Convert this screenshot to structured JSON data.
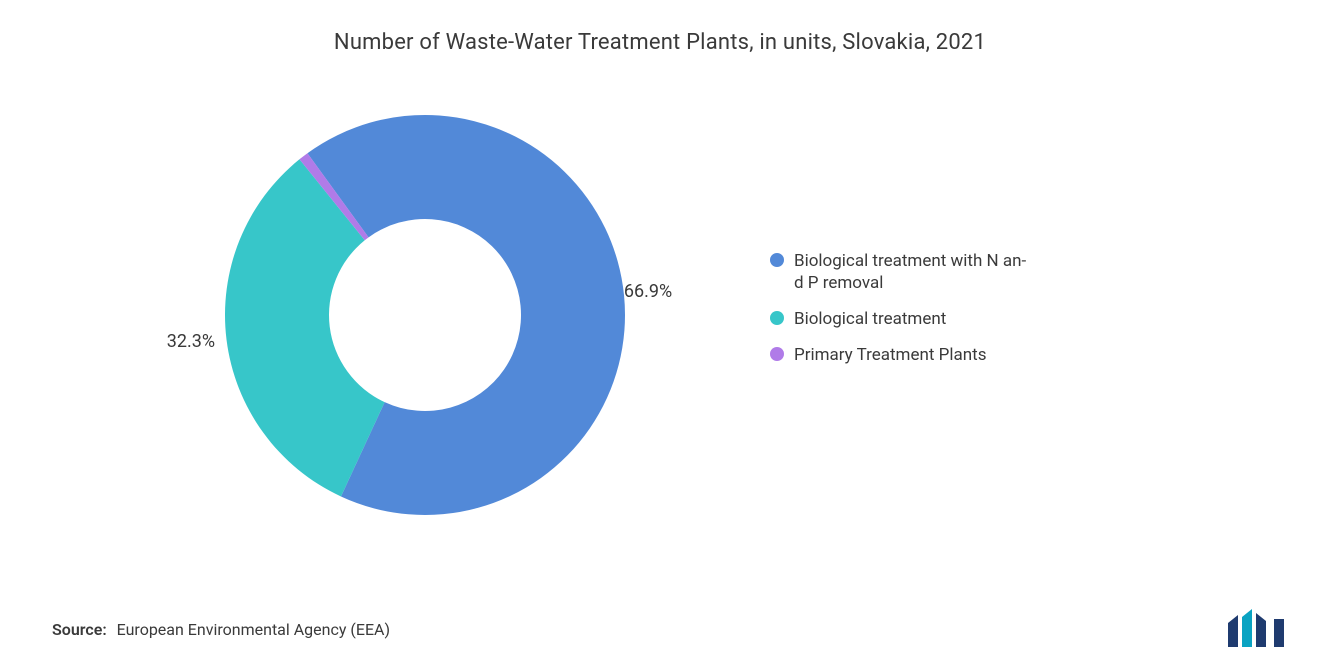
{
  "title": "Number of Waste-Water Treatment Plants, in units, Slovakia, 2021",
  "chart": {
    "type": "donut",
    "inner_radius_ratio": 0.48,
    "background_color": "#ffffff",
    "label_fontsize": 18,
    "label_color": "#3a3a3a",
    "title_fontsize": 22,
    "title_color": "#3a3a3a",
    "slices": [
      {
        "label": "Biological treatment with N an-\nd P removal",
        "value": 66.9,
        "color": "#5289d8",
        "display": "66.9%"
      },
      {
        "label": "Biological treatment",
        "value": 32.3,
        "color": "#37c6c9",
        "display": "32.3%"
      },
      {
        "label": "Primary Treatment Plants",
        "value": 0.8,
        "color": "#b07be8",
        "display": ""
      }
    ],
    "start_angle_deg": -126
  },
  "legend": {
    "fontsize": 17,
    "text_color": "#3a3a3a",
    "dot_size": 14
  },
  "source": {
    "label": "Source:",
    "text": "European Environmental Agency (EEA)"
  },
  "logo": {
    "bar1_color": "#1f3b6f",
    "bar2_color": "#0aa3c2",
    "bar3_color": "#1f3b6f"
  }
}
